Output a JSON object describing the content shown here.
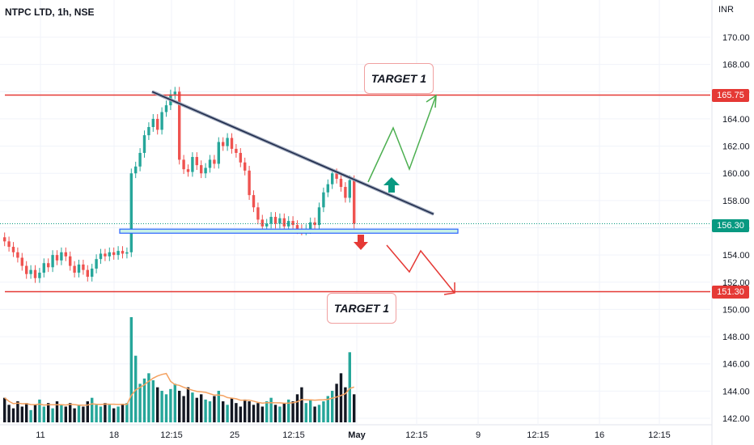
{
  "header": {
    "ticker": "NTPC LTD, 1h, NSE",
    "currency": "INR"
  },
  "annotations": {
    "target_upper": "TARGET 1",
    "target_lower": "TARGET 1",
    "level_upper": "165.75",
    "level_current": "156.30",
    "level_lower": "151.30"
  },
  "colors": {
    "bull": "#26a69a",
    "bear": "#131722",
    "candle_up": "#26a69a",
    "candle_down": "#ef5350",
    "level_line": "#e53935",
    "trendline": "#1e2a4a",
    "zone_fill": "#c9f2e6",
    "zone_border": "#2962ff",
    "ma_line": "#f4a261",
    "current_price": "#089981"
  },
  "chart_data": {
    "type": "candlestick",
    "y_ticks": [
      "170.00",
      "168.00",
      "166.00",
      "164.00",
      "162.00",
      "160.00",
      "158.00",
      "156.00",
      "154.00",
      "152.00",
      "150.00",
      "148.00",
      "146.00",
      "144.00",
      "142.00"
    ],
    "ylim": [
      141.8,
      172
    ],
    "x_ticks": [
      "11",
      "18",
      "12:15",
      "25",
      "12:15",
      "May",
      "12:15",
      "9",
      "12:15",
      "16",
      "12:15"
    ],
    "levels": [
      {
        "label": "165.75",
        "value": 165.75
      },
      {
        "label": "151.30",
        "value": 151.3
      }
    ],
    "current_price": 156.3,
    "support_zone": {
      "low": 155.6,
      "high": 155.9
    },
    "trendline": {
      "start": 166.0,
      "end": 157.0
    },
    "candles_close": [
      155.0,
      154.6,
      154.2,
      153.8,
      153.2,
      152.6,
      152.9,
      152.3,
      152.7,
      153.4,
      153.1,
      154.0,
      153.6,
      154.2,
      153.9,
      153.2,
      152.7,
      153.3,
      152.9,
      152.4,
      153.0,
      153.7,
      154.1,
      153.9,
      154.2,
      154.0,
      154.3,
      154.1,
      154.2,
      160.0,
      160.5,
      161.5,
      162.8,
      163.4,
      164.0,
      163.2,
      164.5,
      165.0,
      165.8,
      166.0,
      161.0,
      160.3,
      160.1,
      161.2,
      160.6,
      160.0,
      160.4,
      161.0,
      160.7,
      162.3,
      162.0,
      162.6,
      161.8,
      161.5,
      160.8,
      160.2,
      158.4,
      157.5,
      156.6,
      156.1,
      156.3,
      156.8,
      156.3,
      156.7,
      156.1,
      156.5,
      156.2,
      155.9,
      155.8,
      155.9,
      156.4,
      156.2,
      157.5,
      158.6,
      159.2,
      160.0,
      159.6,
      159.0,
      158.2,
      159.5,
      156.3
    ],
    "volume": [
      14,
      10,
      8,
      12,
      9,
      11,
      7,
      10,
      13,
      9,
      11,
      8,
      12,
      10,
      9,
      11,
      8,
      10,
      9,
      12,
      14,
      10,
      9,
      11,
      10,
      8,
      9,
      10,
      11,
      60,
      38,
      22,
      25,
      28,
      24,
      20,
      18,
      16,
      19,
      22,
      18,
      15,
      20,
      17,
      14,
      16,
      13,
      12,
      15,
      18,
      12,
      10,
      14,
      11,
      9,
      13,
      12,
      10,
      11,
      9,
      12,
      14,
      10,
      9,
      11,
      13,
      12,
      16,
      20,
      11,
      13,
      9,
      10,
      12,
      15,
      18,
      22,
      28,
      20,
      40,
      16
    ]
  }
}
